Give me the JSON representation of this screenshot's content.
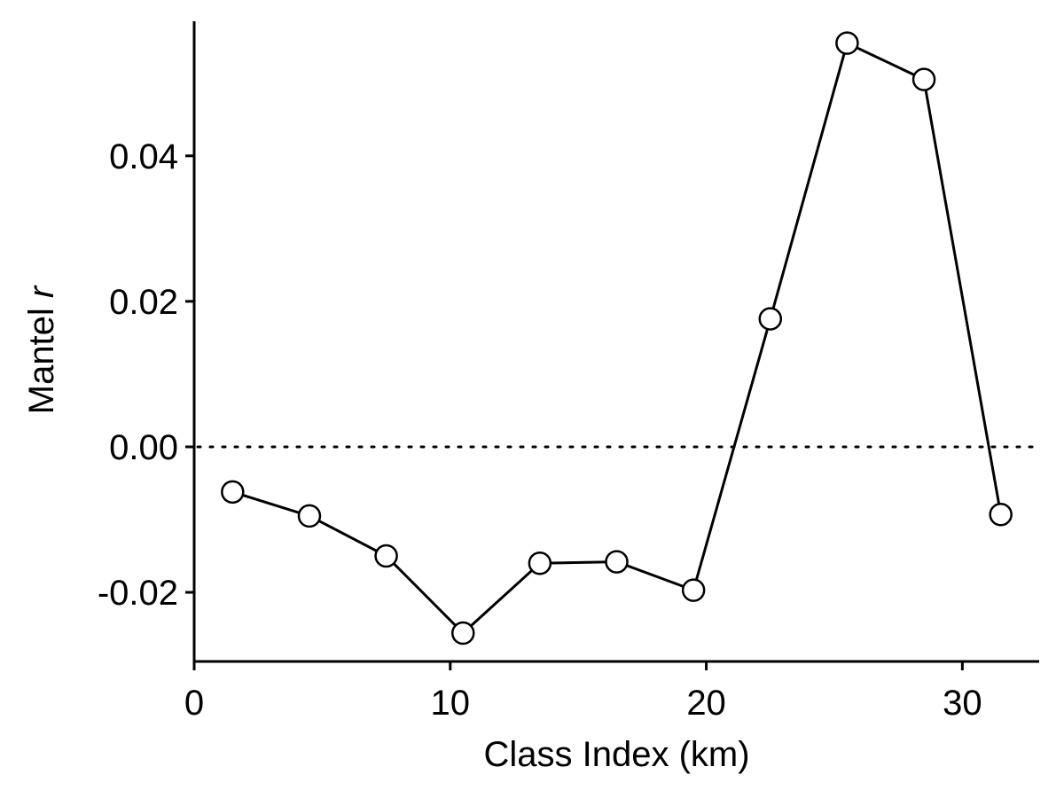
{
  "chart_data": {
    "type": "line",
    "title": "",
    "xlabel": "Class Index (km)",
    "ylabel_main": "Mantel ",
    "ylabel_italic": "r",
    "xlim": [
      0,
      33
    ],
    "ylim": [
      -0.0295,
      0.0585
    ],
    "x_ticks": [
      0,
      10,
      20,
      30
    ],
    "x_tick_labels": [
      "0",
      "10",
      "20",
      "30"
    ],
    "y_ticks": [
      -0.02,
      0.0,
      0.02,
      0.04
    ],
    "y_tick_labels": [
      "-0.02",
      "0.00",
      "0.02",
      "0.04"
    ],
    "reference_line": {
      "y": 0,
      "style": "dotted"
    },
    "grid": false,
    "legend": "none",
    "series": [
      {
        "x": [
          1.5,
          4.5,
          7.5,
          10.5,
          13.5,
          16.5,
          19.5,
          22.5,
          25.5,
          28.5,
          31.5
        ],
        "values": [
          -0.0062,
          -0.0095,
          -0.015,
          -0.0256,
          -0.016,
          -0.0158,
          -0.0197,
          0.0176,
          0.0555,
          0.0505,
          -0.0093
        ]
      }
    ],
    "colors": {
      "line": "#000000",
      "marker_fill": "#ffffff",
      "marker_edge": "#000000"
    }
  }
}
